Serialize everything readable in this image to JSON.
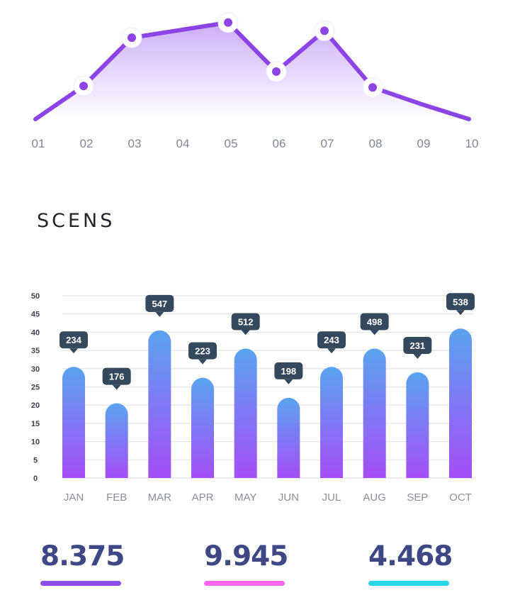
{
  "chart_data": [
    {
      "type": "area",
      "categories": [
        "01",
        "02",
        "03",
        "04",
        "05",
        "06",
        "07",
        "08",
        "09",
        "10"
      ],
      "values": [
        0,
        48,
        118,
        129,
        140,
        69,
        128,
        46,
        22,
        0
      ],
      "markers": [
        false,
        true,
        true,
        false,
        true,
        true,
        true,
        true,
        false,
        false
      ],
      "ylim": [
        0,
        150
      ],
      "grid": false,
      "line_color": "#8c44e6",
      "fill_color": "#a36cf0"
    },
    {
      "type": "bar",
      "categories": [
        "JAN",
        "FEB",
        "MAR",
        "APR",
        "MAY",
        "JUN",
        "JUL",
        "AUG",
        "SEP",
        "OCT"
      ],
      "values": [
        30.5,
        20.5,
        40.5,
        27.5,
        35.5,
        22,
        30.5,
        35.5,
        29,
        41
      ],
      "data_labels": [
        "234",
        "176",
        "547",
        "223",
        "512",
        "198",
        "243",
        "498",
        "231",
        "538"
      ],
      "yticks": [
        "0",
        "5",
        "10",
        "15",
        "20",
        "25",
        "30",
        "35",
        "40",
        "45",
        "50"
      ],
      "ylim": [
        0,
        50
      ],
      "grid": true,
      "bar_color_top": "#5aa3f0",
      "bar_color_bottom": "#a54ef8",
      "label_bg": "#35495c"
    }
  ],
  "header": {
    "title": "SCENS"
  },
  "stats": [
    {
      "value": "8.375",
      "color": "#8a4ee6"
    },
    {
      "value": "9.945",
      "color": "#ff66ee"
    },
    {
      "value": "4.468",
      "color": "#26d6e8"
    }
  ]
}
